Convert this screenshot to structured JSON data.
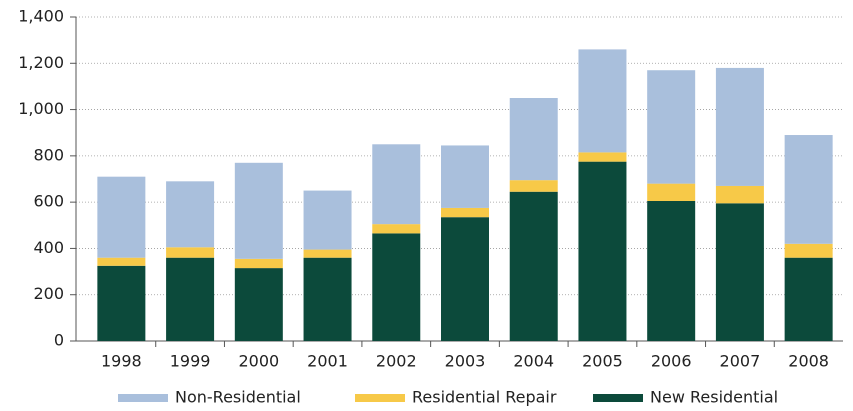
{
  "chart_data": {
    "type": "stacked-bar",
    "categories": [
      "1998",
      "1999",
      "2000",
      "2001",
      "2002",
      "2003",
      "2004",
      "2005",
      "2006",
      "2007",
      "2008"
    ],
    "series": [
      {
        "name": "Non-Residential",
        "color": "#a9bfdc",
        "values": [
          350,
          285,
          415,
          255,
          345,
          270,
          355,
          445,
          490,
          510,
          470
        ]
      },
      {
        "name": "Residential Repair",
        "color": "#f7c948",
        "values": [
          35,
          45,
          40,
          35,
          40,
          40,
          50,
          40,
          75,
          75,
          60
        ]
      },
      {
        "name": "New Residential",
        "color": "#0c4a3b",
        "values": [
          325,
          360,
          315,
          360,
          465,
          535,
          645,
          775,
          605,
          595,
          360
        ]
      }
    ],
    "ylim": [
      0,
      1400
    ],
    "yticks": [
      0,
      200,
      400,
      600,
      800,
      {
        "value": 1000,
        "label": "1,000"
      },
      {
        "value": 1200,
        "label": "1,200"
      },
      {
        "value": 1400,
        "label": "1,400"
      }
    ],
    "grid": true
  }
}
